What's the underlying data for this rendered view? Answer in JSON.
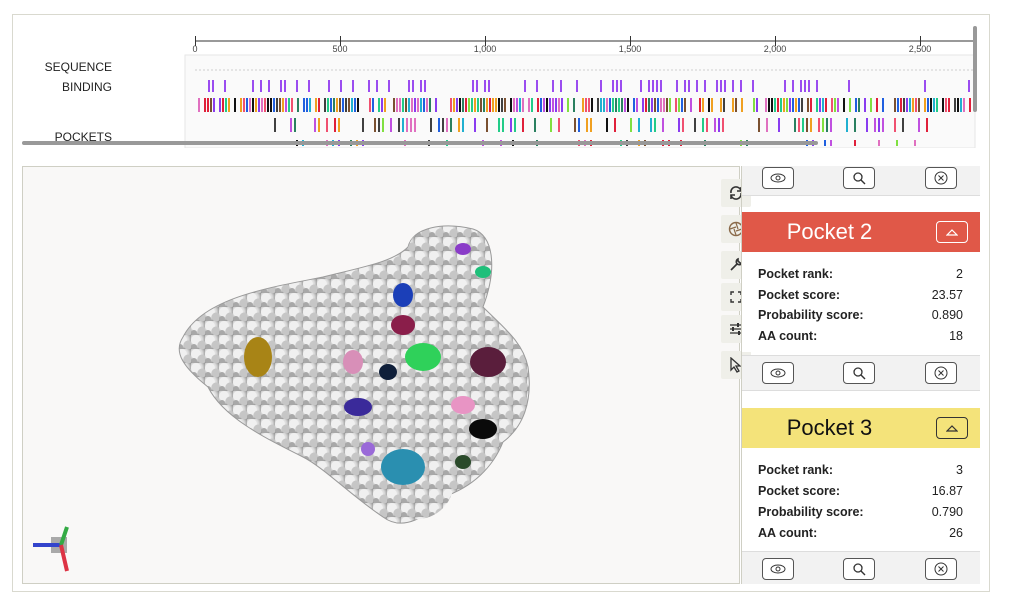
{
  "sequence_view": {
    "ruler_ticks": [
      "0",
      "500",
      "1,000",
      "1,500",
      "2,000",
      "2,500"
    ],
    "tracks": [
      "SEQUENCE",
      "BINDING",
      "POCKETS"
    ]
  },
  "viewer": {
    "controls": [
      "reset-camera",
      "screenshot",
      "settings",
      "fullscreen",
      "options",
      "select-mode"
    ],
    "axes_colors": {
      "x": "#3344cc",
      "y": "#33aa44",
      "z": "#dd3344"
    }
  },
  "pockets": [
    {
      "name": "Pocket 2",
      "color": "#e05848",
      "title_color": "#ffffff",
      "rows": [
        {
          "key": "Pocket rank:",
          "value": "2"
        },
        {
          "key": "Pocket score:",
          "value": "23.57"
        },
        {
          "key": "Probability score:",
          "value": "0.890"
        },
        {
          "key": "AA count:",
          "value": "18"
        }
      ]
    },
    {
      "name": "Pocket 3",
      "color": "#f4e37a",
      "title_color": "#111111",
      "rows": [
        {
          "key": "Pocket rank:",
          "value": "3"
        },
        {
          "key": "Pocket score:",
          "value": "16.87"
        },
        {
          "key": "Probability score:",
          "value": "0.790"
        },
        {
          "key": "AA count:",
          "value": "26"
        }
      ]
    }
  ]
}
